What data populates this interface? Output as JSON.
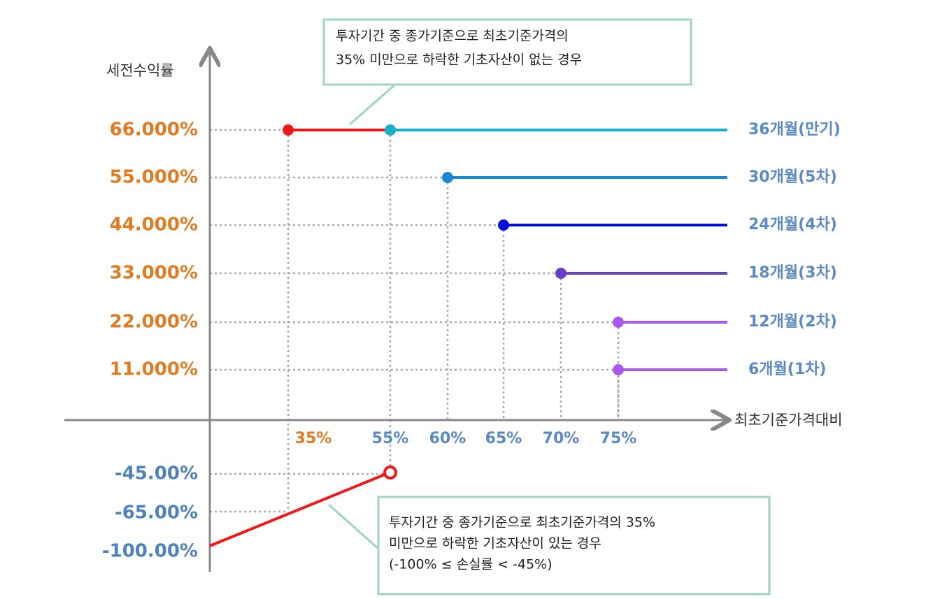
{
  "y_axis_label": "세전수익률",
  "x_axis_label": "최초기준가격대비",
  "y_labels": [
    "66.000%",
    "55.000%",
    "44.000%",
    "33.000%",
    "22.000%",
    "11.000%"
  ],
  "negative_labels": [
    "-45.00%",
    "-65.00%",
    "-100.00%"
  ],
  "x_labels": [
    "35%",
    "55%",
    "60%",
    "65%",
    "70%",
    "75%"
  ],
  "periods": [
    "36개월(만기)",
    "30개월(5차)",
    "24개월(4차)",
    "18개월(3차)",
    "12개월(2차)",
    "6개월(1차)"
  ],
  "callouts": [
    {
      "lines": [
        "투자기간 중 종가기준으로 최초기준가격의",
        "35% 미만으로 하락한 기초자산이 없는 경우"
      ]
    },
    {
      "lines": [
        "투자기간 중 종가기준으로 최초기준가격의 35%",
        "미만으로 하락한 기초자산이 있는 경우",
        "(-100% ≤ 손실률 < -45%)"
      ]
    }
  ]
}
